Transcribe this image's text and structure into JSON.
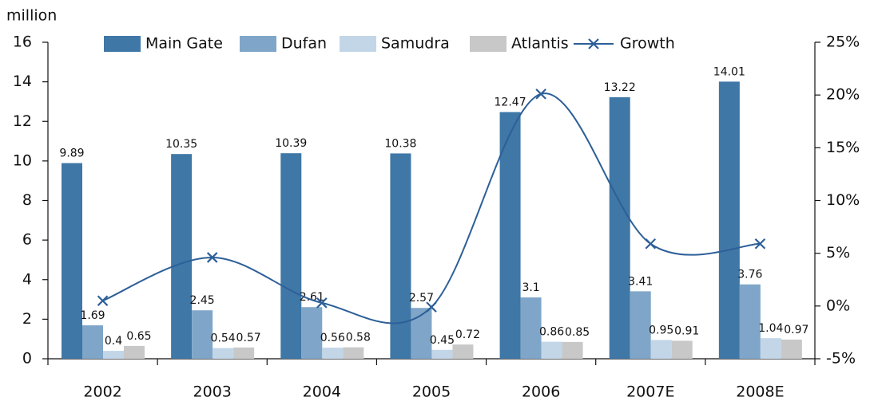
{
  "chart_data": {
    "type": "bar",
    "y_label": "million",
    "categories": [
      "2002",
      "2003",
      "2004",
      "2005",
      "2006",
      "2007E",
      "2008E"
    ],
    "series": [
      {
        "name": "Main Gate",
        "color": "#3f77a6",
        "values": [
          9.89,
          10.35,
          10.39,
          10.38,
          12.47,
          13.22,
          14.01
        ]
      },
      {
        "name": "Dufan",
        "color": "#7fa6c8",
        "values": [
          1.69,
          2.45,
          2.61,
          2.57,
          3.1,
          3.41,
          3.76
        ]
      },
      {
        "name": "Samudra",
        "color": "#c2d6e8",
        "values": [
          0.4,
          0.54,
          0.56,
          0.45,
          0.86,
          0.95,
          1.04
        ]
      },
      {
        "name": "Atlantis",
        "color": "#c8c8c8",
        "values": [
          0.65,
          0.57,
          0.58,
          0.72,
          0.85,
          0.91,
          0.97
        ]
      },
      {
        "name": "Growth",
        "color": "#2d5f98",
        "type": "line",
        "axis": "y2",
        "values": [
          0.5,
          4.6,
          0.3,
          -0.1,
          20.1,
          5.9,
          5.9
        ]
      }
    ],
    "ylim": [
      0,
      16
    ],
    "yticks": [
      0,
      2,
      4,
      6,
      8,
      10,
      12,
      14,
      16
    ],
    "y2lim": [
      -5,
      25
    ],
    "y2ticks": [
      {
        "value": -5,
        "label": "-5%"
      },
      {
        "value": 0,
        "label": "0%"
      },
      {
        "value": 5,
        "label": "5%"
      },
      {
        "value": 10,
        "label": "10%"
      },
      {
        "value": 15,
        "label": "15%"
      },
      {
        "value": 20,
        "label": "20%"
      },
      {
        "value": 25,
        "label": "25%"
      }
    ],
    "grid": false,
    "legend": "top"
  }
}
